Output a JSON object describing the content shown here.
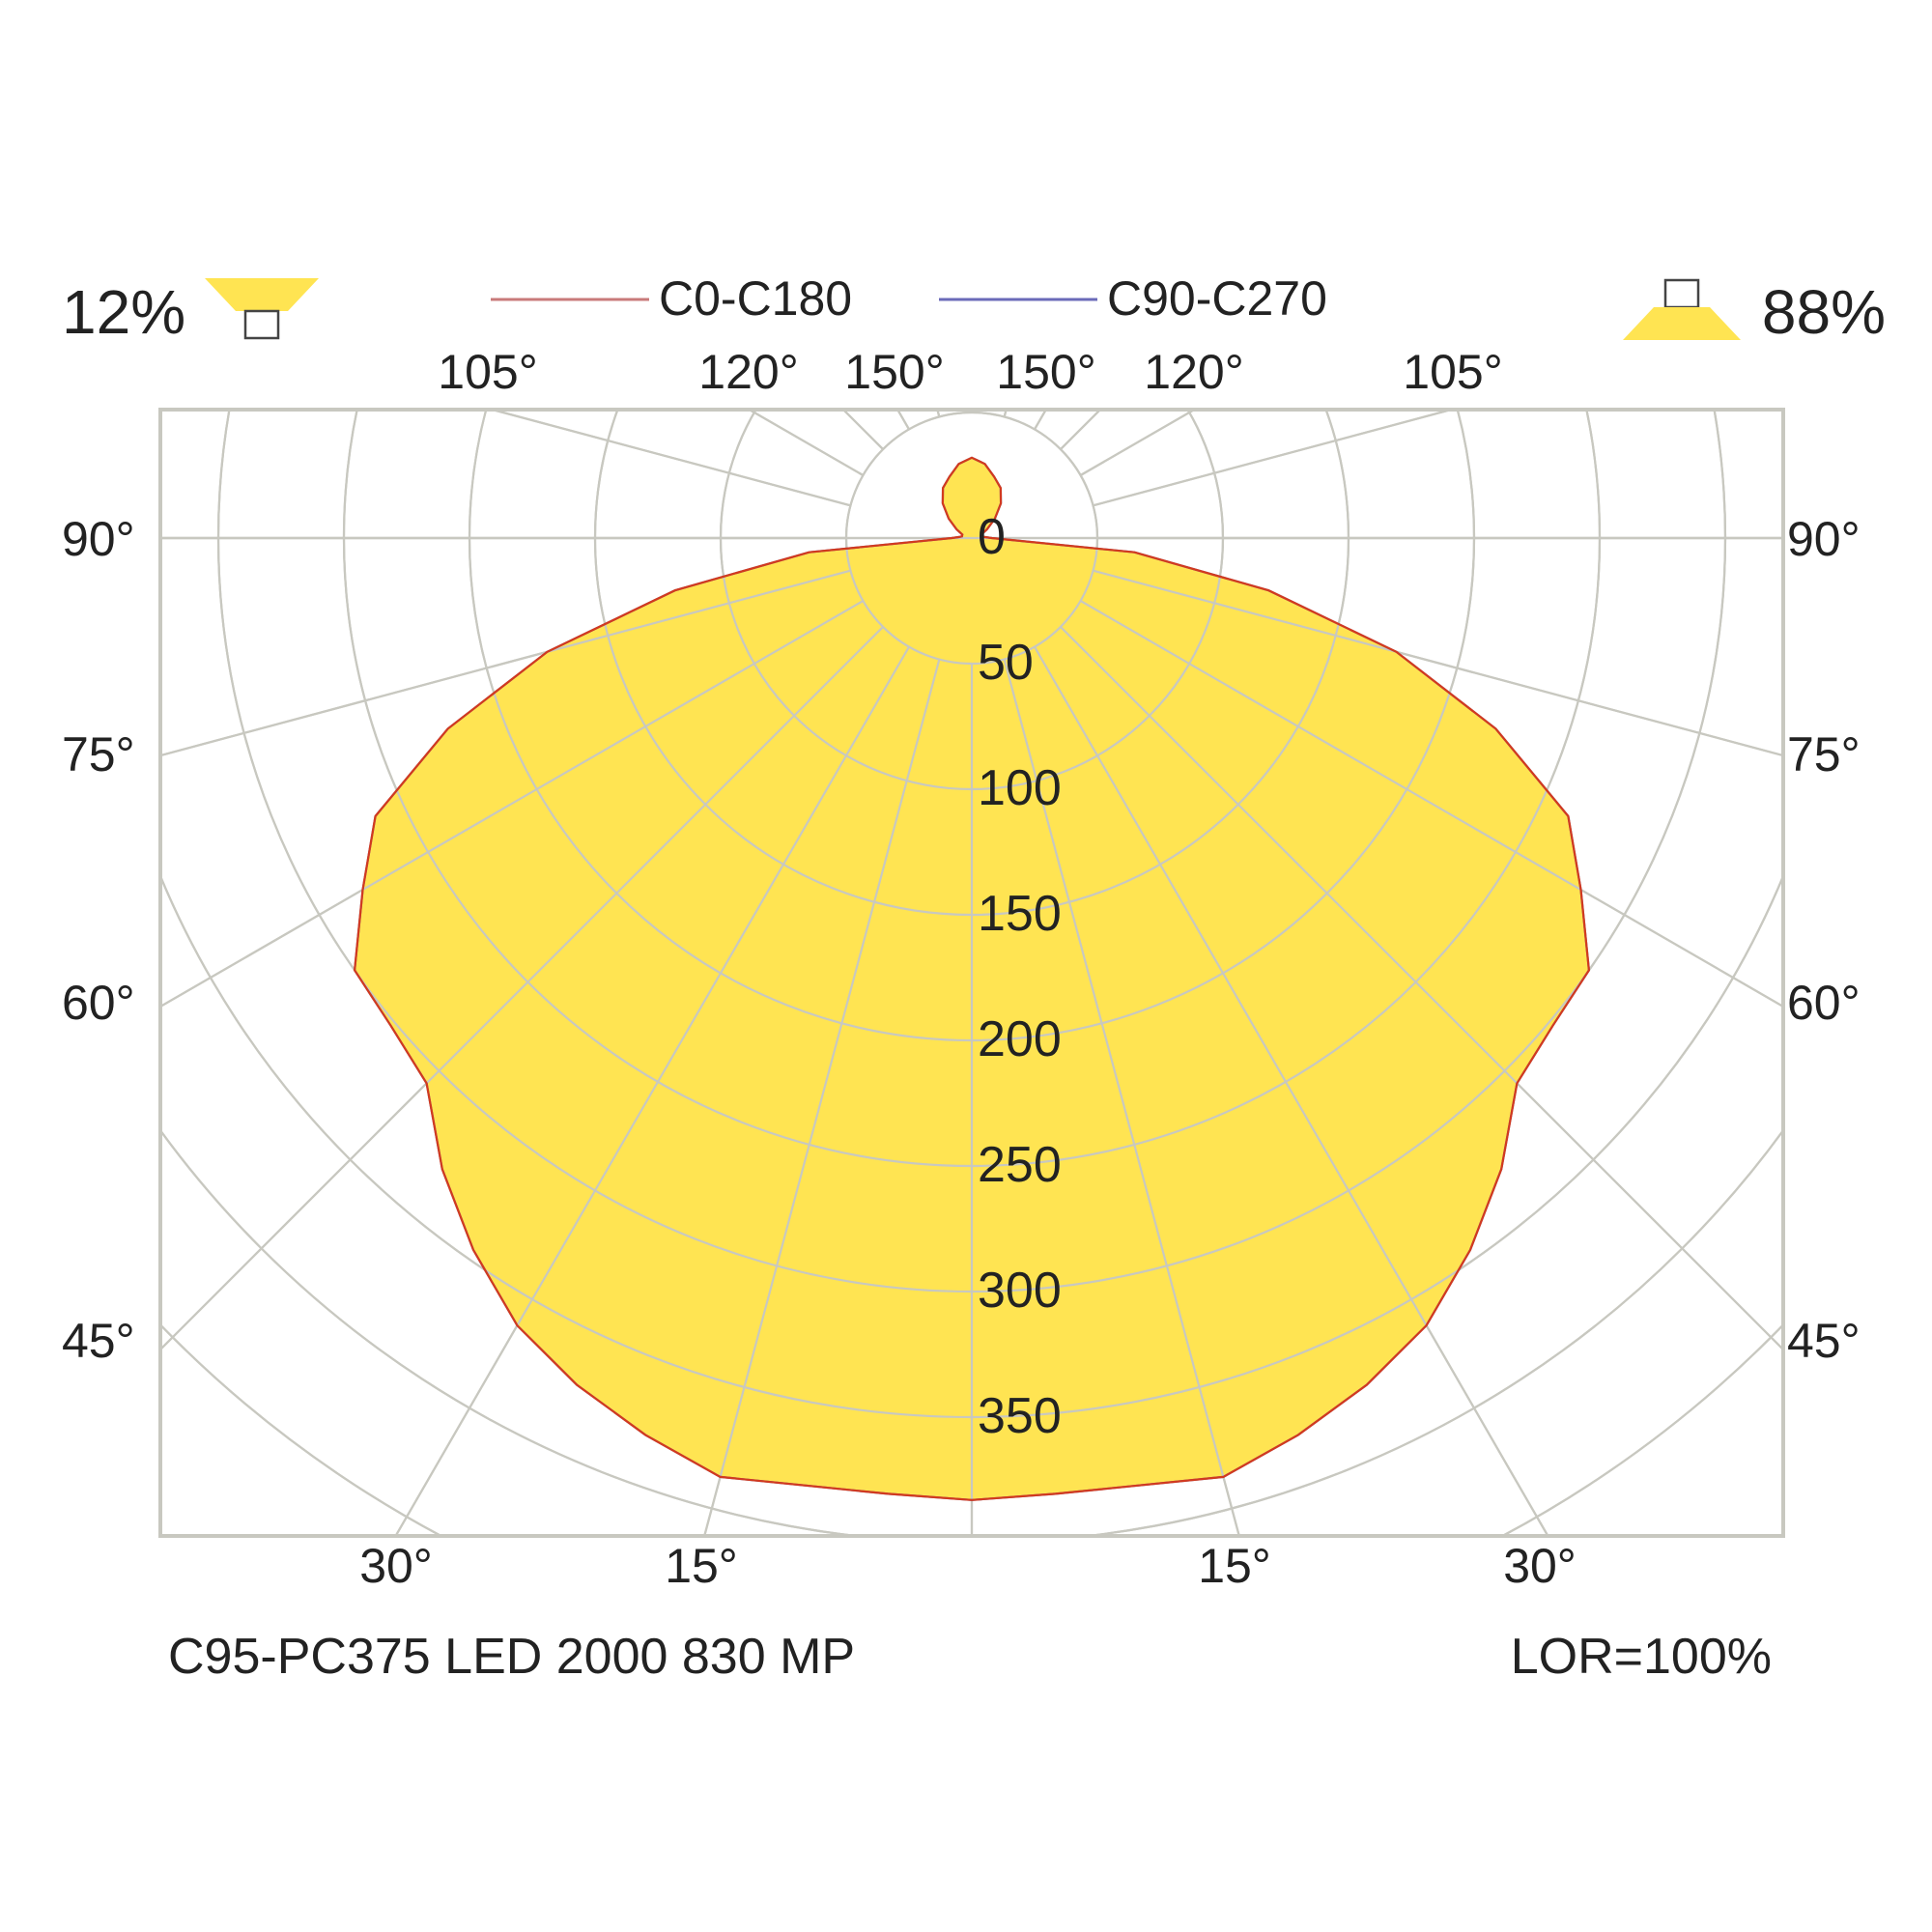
{
  "header": {
    "uplight_percent": "12%",
    "downlight_percent": "88%",
    "uplight_icon": "uplight-lamp-icon",
    "downlight_icon": "downlight-lamp-icon"
  },
  "legend": [
    {
      "name": "C0-C180",
      "color": "#c87a7a"
    },
    {
      "name": "C90-C270",
      "color": "#6a6ab8"
    }
  ],
  "footer": {
    "product_name": "C95-PC375 LED 2000 830 MP",
    "lor": "LOR=100%"
  },
  "chart_data": {
    "type": "polar",
    "unit_axis_labels": [
      "0",
      "50",
      "100",
      "150",
      "200",
      "250",
      "300",
      "350"
    ],
    "radial_ticks": [
      50,
      100,
      150,
      200,
      250,
      300,
      350
    ],
    "radial_max": 400,
    "angle_ticks_deg": [
      15,
      30,
      45,
      60,
      75,
      90,
      105,
      120,
      135,
      150,
      165
    ],
    "side_labels": [
      "90°",
      "75°",
      "60°",
      "45°"
    ],
    "bottom_labels": [
      "30°",
      "15°",
      "15°",
      "30°"
    ],
    "top_labels": [
      "105°",
      "120°",
      "150°",
      "150°",
      "120°",
      "105°"
    ],
    "fill_color": "#ffe452",
    "grid_color": "#c8c8c0",
    "series": [
      {
        "name": "C0-C180",
        "angles_deg": [
          0,
          5,
          10,
          15,
          20,
          25,
          30,
          35,
          40,
          45,
          50,
          55,
          60,
          65,
          70,
          75,
          80,
          85,
          90,
          95,
          100,
          110,
          120,
          130,
          140,
          150,
          160,
          170,
          180
        ],
        "values": [
          383,
          382,
          383,
          387,
          380,
          372,
          362,
          346,
          328,
          307,
          302,
          300,
          280,
          262,
          222,
          175,
          120,
          65,
          8,
          5,
          4,
          4,
          7,
          12,
          18,
          23,
          26,
          30,
          32
        ]
      },
      {
        "name": "C90-C270",
        "angles_deg": [
          0,
          5,
          10,
          15,
          20,
          25,
          30,
          35,
          40,
          45,
          50,
          55,
          60,
          65,
          70,
          75,
          80,
          85,
          90,
          95,
          100,
          110,
          120,
          130,
          140,
          150,
          160,
          170,
          180
        ],
        "values": [
          383,
          382,
          383,
          387,
          380,
          372,
          362,
          346,
          328,
          307,
          302,
          300,
          280,
          262,
          222,
          175,
          120,
          65,
          8,
          5,
          4,
          4,
          7,
          12,
          18,
          23,
          26,
          30,
          32
        ]
      }
    ]
  }
}
